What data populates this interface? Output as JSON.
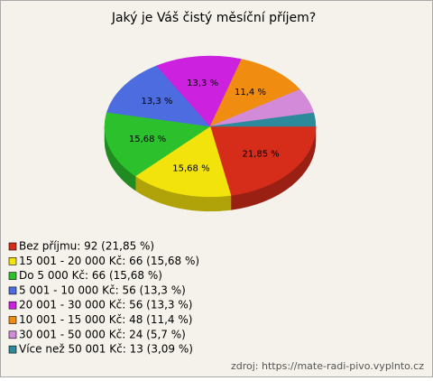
{
  "chart_data": {
    "type": "pie",
    "title": "Jaký je Váš čistý měsíční příjem?",
    "categories": [
      "Bez příjmu: 92 (21,85 %)",
      "15 001 - 20 000 Kč: 66 (15,68 %)",
      "Do 5 000 Kč: 66 (15,68 %)",
      "5 001 - 10 000 Kč: 56 (13,3 %)",
      "20 001 - 30 000 Kč: 56 (13,3 %)",
      "10 001 - 15 000 Kč: 48 (11,4 %)",
      "30 001 - 50 000 Kč: 24 (5,7 %)",
      "Více než 50 001 Kč: 13 (3,09 %)"
    ],
    "values": [
      21.85,
      15.68,
      15.68,
      13.3,
      13.3,
      11.4,
      5.7,
      3.09
    ],
    "value_labels": [
      "21,85 %",
      "15,68 %",
      "15,68 %",
      "13,3 %",
      "13,3 %",
      "11,4 %",
      null,
      null
    ],
    "colors": [
      "#d62d1a",
      "#f3e30c",
      "#2cc12c",
      "#4d6ce0",
      "#cc22e0",
      "#f08c10",
      "#d38ad8",
      "#2c8a9a"
    ],
    "source": "zdroj: https://mate-radi-pivo.vyplnto.cz"
  }
}
